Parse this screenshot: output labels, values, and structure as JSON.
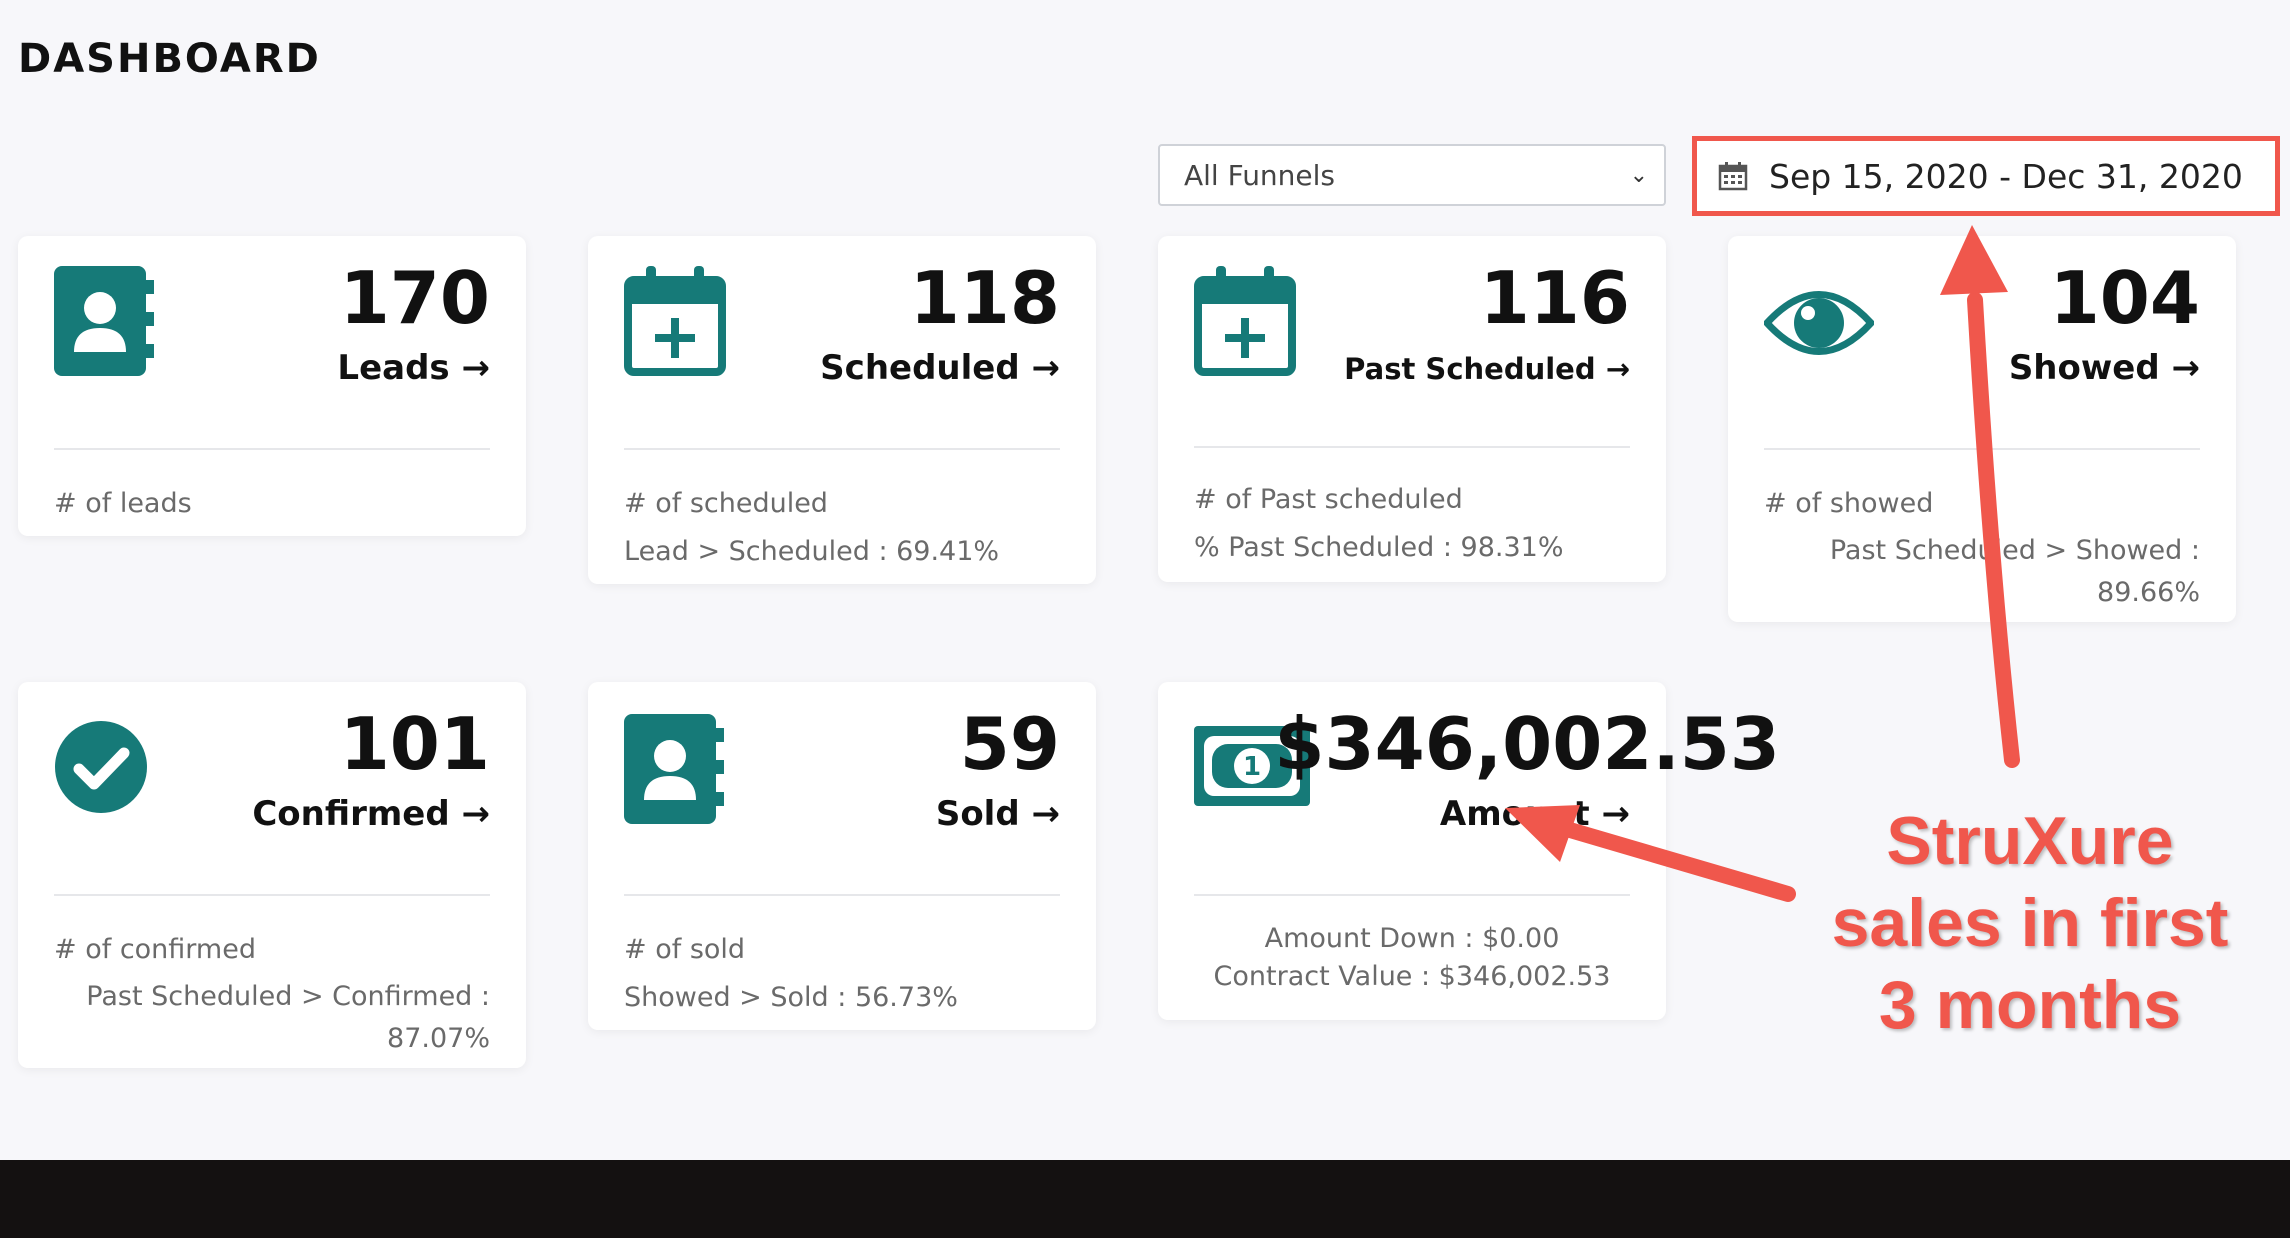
{
  "header": {
    "title": "DASHBOARD"
  },
  "filters": {
    "funnel_select": "All Funnels",
    "date_range": "Sep 15, 2020 - Dec 31, 2020"
  },
  "cards": [
    {
      "value": "170",
      "label": "Leads →",
      "foot1": "# of leads",
      "foot2": "",
      "icon": "contact-book-icon"
    },
    {
      "value": "118",
      "label": "Scheduled →",
      "foot1": "# of scheduled",
      "foot2": "Lead > Scheduled : 69.41%",
      "icon": "calendar-plus-icon"
    },
    {
      "value": "116",
      "label": "Past Scheduled →",
      "foot1": "# of Past scheduled",
      "foot2": "% Past Scheduled : 98.31%",
      "icon": "calendar-plus-icon"
    },
    {
      "value": "104",
      "label": "Showed →",
      "foot1": "# of showed",
      "foot2": "Past Scheduled > Showed :",
      "foot3": "89.66%",
      "icon": "eye-icon"
    },
    {
      "value": "101",
      "label": "Confirmed →",
      "foot1": "# of confirmed",
      "foot2": "Past Scheduled > Confirmed :",
      "foot3": "87.07%",
      "icon": "check-circle-icon"
    },
    {
      "value": "59",
      "label": "Sold →",
      "foot1": "# of sold",
      "foot2": "Showed > Sold : 56.73%",
      "icon": "contact-book-icon"
    },
    {
      "value": "$346,002.53",
      "label": "Amount →",
      "foot1": "Amount Down : $0.00",
      "foot2": "Contract Value : $346,002.53",
      "icon": "money-bill-icon"
    }
  ],
  "annotation": {
    "text_line1": "StruXure",
    "text_line2": "sales in first",
    "text_line3": "3 months"
  },
  "colors": {
    "accent": "#167a78",
    "annotation": "#f0574c"
  }
}
